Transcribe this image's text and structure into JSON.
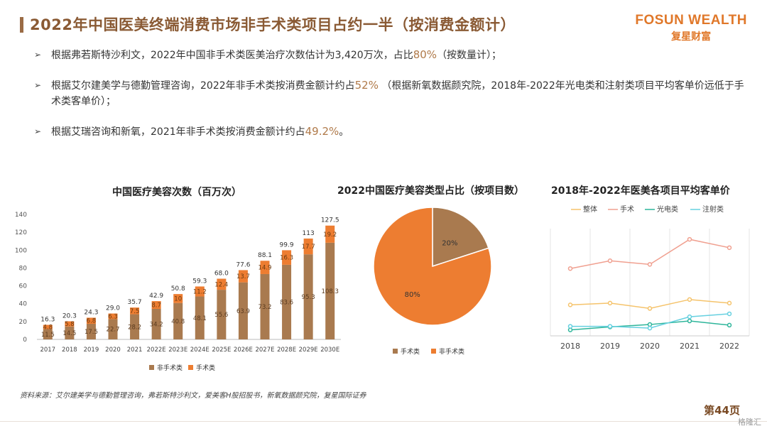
{
  "header": {
    "title": "2022年中国医美终端消费市场非手术类项目占约一半（按消费金额计）",
    "logo_en": "FOSUN WEALTH",
    "logo_cn": "复星财富"
  },
  "bullets": [
    {
      "pre": "根据弗若斯特沙利文，2022年中国非手术类医美治疗次数估计为3,420万次，占比",
      "hl": "80%",
      "post": "（按数量计）；"
    },
    {
      "pre": "根据艾尔建美学与德勤管理咨询，2022年非手术类按消费金额计约占",
      "hl": "52%",
      "post": " （根据新氧数据颜究院，2018年-2022年光电类和注射类项目平均客单价远低于手术类客单价）；"
    },
    {
      "pre": "根据艾瑞咨询和新氧，2021年非手术类按消费金额计约占",
      "hl": "49.2%",
      "post": "。"
    }
  ],
  "colors": {
    "brown": "#a97a4f",
    "orange": "#ed7d31",
    "title_brown": "#8a5a34"
  },
  "chart_data": [
    {
      "type": "bar",
      "title": "中国医疗美容次数（百万次）",
      "categories": [
        "2017",
        "2018",
        "2019",
        "2020",
        "2021",
        "2022E",
        "2023E",
        "2024E",
        "2025E",
        "2026E",
        "2027E",
        "2028E",
        "2029E",
        "2030E"
      ],
      "series": [
        {
          "name": "非手术类",
          "values": [
            11.5,
            14.5,
            17.5,
            22.7,
            28.2,
            34.2,
            40.8,
            48.1,
            55.6,
            63.9,
            73.2,
            83.6,
            95.3,
            108.3
          ],
          "color": "#a97a4f"
        },
        {
          "name": "手术类",
          "values": [
            4.8,
            5.8,
            6.8,
            6.3,
            7.5,
            8.7,
            10,
            11.2,
            12.4,
            13.7,
            14.9,
            16.3,
            17.7,
            19.2
          ],
          "color": "#ed7d31"
        }
      ],
      "totals": [
        "16.3",
        "20.3",
        "24.3",
        "29.0",
        "35.7",
        "42.9",
        "50.8",
        "59.3",
        "68.0",
        "77.6",
        "88.1",
        "99.9",
        "113",
        "127.5"
      ],
      "yticks": [
        0,
        20,
        40,
        60,
        80,
        100,
        120,
        140
      ],
      "ylim": [
        0,
        140
      ],
      "legend": "bottom"
    },
    {
      "type": "pie",
      "title": "2022中国医疗美容类型占比（按项目数）",
      "slices": [
        {
          "name": "手术类",
          "value": 20,
          "label": "20%",
          "color": "#a97a4f"
        },
        {
          "name": "非手术类",
          "value": 80,
          "label": "80%",
          "color": "#ed7d31"
        }
      ],
      "legend": "bottom"
    },
    {
      "type": "line",
      "title": "2018年-2022年医美各项目平均客单价",
      "x": [
        "2018",
        "2019",
        "2020",
        "2021",
        "2022"
      ],
      "series": [
        {
          "name": "整体",
          "values": [
            5.2,
            5.5,
            4.6,
            6.1,
            5.5
          ],
          "color": "#f5c36b"
        },
        {
          "name": "手术",
          "values": [
            11.3,
            12.6,
            12.0,
            16.2,
            14.8
          ],
          "color": "#f0a090"
        },
        {
          "name": "光电类",
          "values": [
            1.0,
            1.5,
            1.9,
            2.5,
            1.8
          ],
          "color": "#2db59a"
        },
        {
          "name": "注射类",
          "values": [
            1.6,
            1.6,
            1.3,
            3.2,
            3.7
          ],
          "color": "#66d0e0"
        }
      ],
      "ylim": [
        0,
        18
      ],
      "grid": "vertical",
      "legend": "top"
    }
  ],
  "footer": {
    "source": "资料来源：艾尔建美学与德勤管理咨询，弗若斯特沙利文，爱美客H股招股书，新氧数据颜究院，复星国际证券",
    "page": "第44页",
    "watermark": "格隆汇"
  }
}
